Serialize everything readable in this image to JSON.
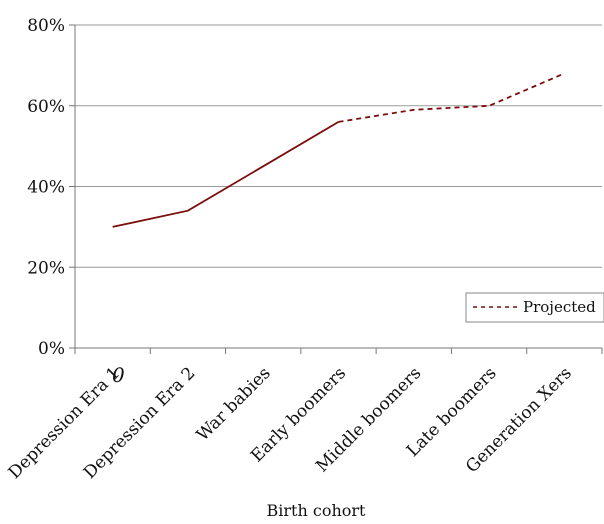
{
  "chart_data": {
    "type": "line",
    "title": "",
    "xlabel": "Birth cohort",
    "ylabel": "",
    "ylim": [
      0,
      80
    ],
    "yticks": [
      "0%",
      "20%",
      "40%",
      "60%",
      "80%"
    ],
    "categories": [
      "Depression Era 1",
      "Depression Era 2",
      "War babies",
      "Early boomers",
      "Middle boomers",
      "Late boomers",
      "Generation Xers"
    ],
    "series": [
      {
        "name": "",
        "values": [
          30,
          34,
          45,
          56,
          null,
          null,
          null
        ],
        "color": "#7b0d0d",
        "style": "solid"
      },
      {
        "name": "Projected",
        "values": [
          null,
          null,
          null,
          56,
          59,
          60,
          68
        ],
        "color": "#7b0d0d",
        "style": "dashed"
      }
    ],
    "grid": true,
    "legend": "bottom-right",
    "annotation": "0"
  }
}
